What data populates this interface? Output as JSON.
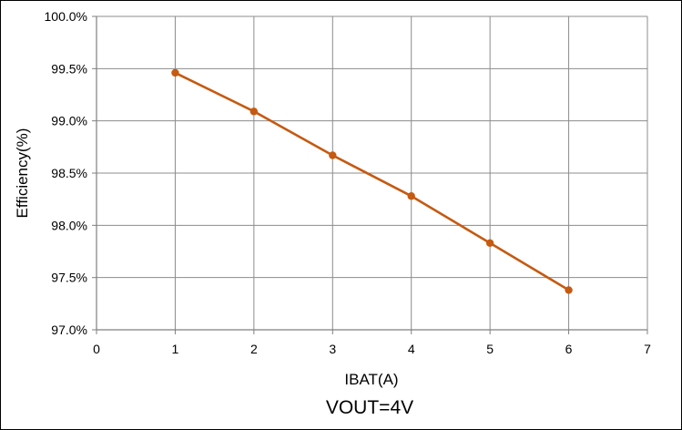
{
  "chart_data": {
    "type": "line",
    "title": "",
    "caption": "VOUT=4V",
    "xlabel": "IBAT(A)",
    "ylabel": "Efficiency(%)",
    "xlim": [
      0,
      7
    ],
    "ylim": [
      97.0,
      100.0
    ],
    "x_ticks": [
      0,
      1,
      2,
      3,
      4,
      5,
      6,
      7
    ],
    "y_ticks": [
      97.0,
      97.5,
      98.0,
      98.5,
      99.0,
      99.5,
      100.0
    ],
    "y_tick_labels": [
      "97.0%",
      "97.5%",
      "98.0%",
      "98.5%",
      "99.0%",
      "99.5%",
      "100.0%"
    ],
    "grid": true,
    "legend": "none",
    "series": [
      {
        "x": [
          1,
          2,
          3,
          4,
          5,
          6
        ],
        "values": [
          99.46,
          99.09,
          98.67,
          98.28,
          97.83,
          97.38
        ],
        "color": "#c55a11"
      }
    ]
  }
}
